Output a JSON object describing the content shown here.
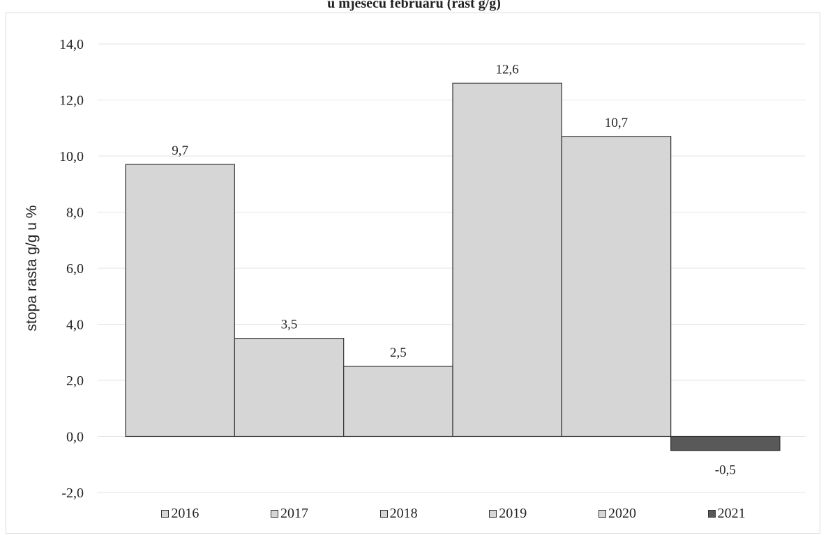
{
  "chart_data": {
    "type": "bar",
    "title": "u mjesecu februaru (rast g/g)",
    "ylabel": "stopa rasta g/g u %",
    "xlabel": "",
    "categories": [
      "2016",
      "2017",
      "2018",
      "2019",
      "2020",
      "2021"
    ],
    "values": [
      9.7,
      3.5,
      2.5,
      12.6,
      10.7,
      -0.5
    ],
    "data_labels": [
      "9,7",
      "3,5",
      "2,5",
      "12,6",
      "10,7",
      "-0,5"
    ],
    "ylim": [
      -2.0,
      14.0
    ],
    "yticks": [
      -2.0,
      0.0,
      2.0,
      4.0,
      6.0,
      8.0,
      10.0,
      12.0,
      14.0
    ],
    "ytick_labels": [
      "-2,0",
      "0,0",
      "2,0",
      "4,0",
      "6,0",
      "8,0",
      "10,0",
      "12,0",
      "14,0"
    ],
    "grid": true,
    "legend_position": "bottom",
    "colors": {
      "bar": "#d6d6d6",
      "highlight": "#595959",
      "border": "#333333",
      "grid": "#e3e3e3"
    }
  }
}
